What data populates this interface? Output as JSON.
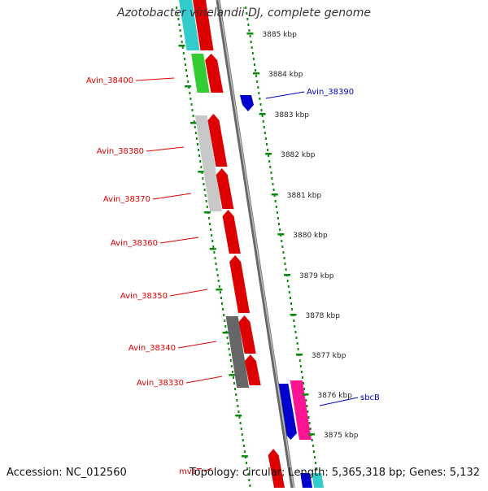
{
  "title": "Azotobacter vinelandii DJ, complete genome",
  "footer": {
    "accession": "Accession: NC_012560",
    "summary": "Topology: circular; Length: 5,365,318 bp; Genes: 5,132"
  },
  "colors": {
    "forward_label": "#dd0000",
    "reverse_label": "#0000cc",
    "ruler": "#0a8a0a",
    "backbone": "#808080"
  },
  "kbp_ticks": [
    "3885 kbp",
    "3884 kbp",
    "3883 kbp",
    "3882 kbp",
    "3881 kbp",
    "3880 kbp",
    "3879 kbp",
    "3878 kbp",
    "3877 kbp",
    "3876 kbp",
    "3875 kbp"
  ],
  "gene_labels_left": [
    "Avin_38400",
    "Avin_38380",
    "Avin_38370",
    "Avin_38360",
    "Avin_38350",
    "Avin_38340",
    "Avin_38330",
    "mvaT"
  ],
  "gene_labels_right": [
    "Avin_38390",
    "sbcB"
  ]
}
